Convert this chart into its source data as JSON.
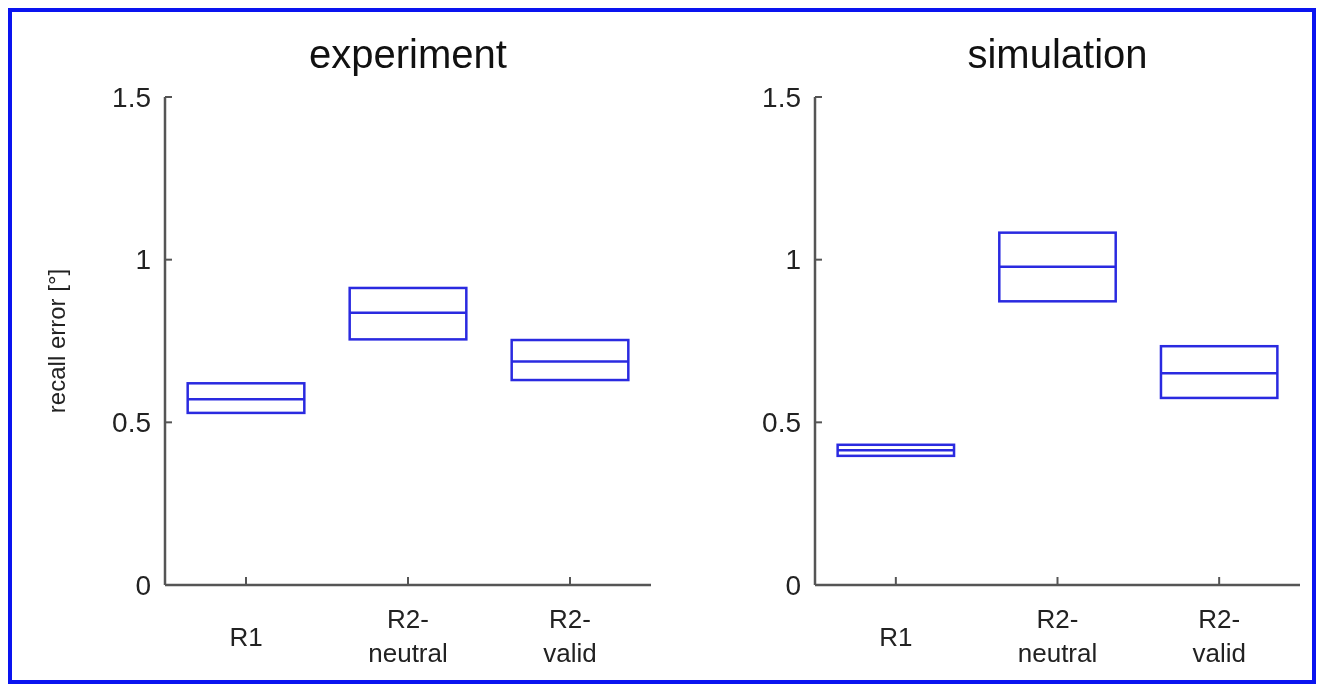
{
  "chart_data": [
    {
      "type": "box",
      "title": "experiment",
      "ylabel": "recall error [°]",
      "categories": [
        "R1",
        "R2-neutral",
        "R2-valid"
      ],
      "color": "#2a2ae0",
      "ylim": [
        0,
        1.5
      ],
      "yticks": [
        0,
        0.5,
        1,
        1.5
      ],
      "boxes": [
        {
          "low": 0.529,
          "q1": 0.529,
          "median": 0.571,
          "q3": 0.62,
          "high": 0.62
        },
        {
          "low": 0.755,
          "q1": 0.755,
          "median": 0.837,
          "q3": 0.913,
          "high": 0.913
        },
        {
          "low": 0.63,
          "q1": 0.63,
          "median": 0.687,
          "q3": 0.753,
          "high": 0.753
        }
      ]
    },
    {
      "type": "box",
      "title": "simulation",
      "categories": [
        "R1",
        "R2-neutral",
        "R2-valid"
      ],
      "color": "#2a2ae0",
      "ylim": [
        0,
        1.5
      ],
      "yticks": [
        0,
        0.5,
        1,
        1.5
      ],
      "boxes": [
        {
          "low": 0.397,
          "q1": 0.397,
          "median": 0.414,
          "q3": 0.431,
          "high": 0.431
        },
        {
          "low": 0.872,
          "q1": 0.872,
          "median": 0.978,
          "q3": 1.083,
          "high": 1.083
        },
        {
          "low": 0.575,
          "q1": 0.575,
          "median": 0.651,
          "q3": 0.734,
          "high": 0.734
        }
      ]
    }
  ]
}
